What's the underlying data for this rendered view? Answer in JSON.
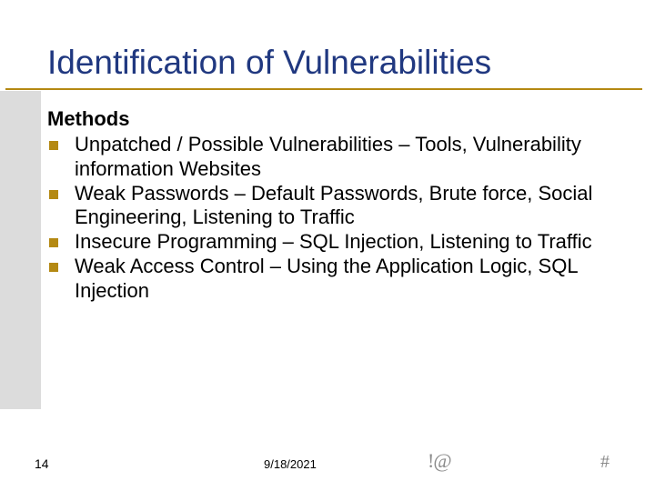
{
  "title": "Identification of Vulnerabilities",
  "subheading": "Methods",
  "bullets": [
    "Unpatched / Possible Vulnerabilities – Tools, Vulnerability information Websites",
    "Weak Passwords – Default Passwords, Brute force, Social Engineering, Listening to Traffic",
    "Insecure Programming – SQL Injection, Listening to Traffic",
    "Weak Access Control – Using the Application Logic, SQL Injection"
  ],
  "footer": {
    "page_number": "14",
    "date": "9/18/2021",
    "decoration_left": "!@",
    "decoration_right": "#"
  },
  "colors": {
    "title_color": "#203880",
    "accent_color": "#b48913",
    "leftstrip_color": "#dcdcdc",
    "text_color": "#000000",
    "footer_symbol_color": "#8a8a8a",
    "background": "#ffffff"
  },
  "typography": {
    "title_fontsize": 37,
    "body_fontsize": 22,
    "subhead_weight": 700,
    "footer_fontsize": 14
  }
}
